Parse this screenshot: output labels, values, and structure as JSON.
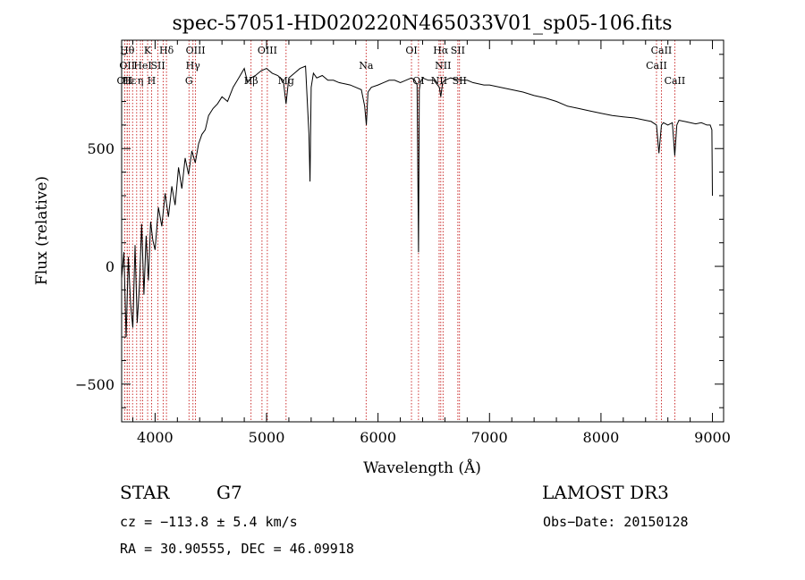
{
  "chart_data": {
    "type": "line",
    "title": "spec-57051-HD020220N465033V01_sp05-106.fits",
    "xlabel": "Wavelength (Å)",
    "ylabel": "Flux (relative)",
    "xlim": [
      3700,
      9100
    ],
    "ylim": [
      -660,
      960
    ],
    "x_ticks": [
      4000,
      5000,
      6000,
      7000,
      8000,
      9000
    ],
    "x_tick_labels": [
      "4000",
      "5000",
      "6000",
      "7000",
      "8000",
      "9000"
    ],
    "y_ticks": [
      -500,
      0,
      500
    ],
    "y_tick_labels": [
      "−500",
      "0",
      "500"
    ],
    "series": [
      {
        "name": "flux",
        "x": [
          3700,
          3720,
          3740,
          3760,
          3780,
          3800,
          3820,
          3840,
          3860,
          3880,
          3900,
          3920,
          3940,
          3960,
          3980,
          4000,
          4030,
          4060,
          4090,
          4120,
          4150,
          4180,
          4210,
          4240,
          4270,
          4300,
          4330,
          4360,
          4390,
          4420,
          4450,
          4480,
          4520,
          4560,
          4600,
          4650,
          4700,
          4750,
          4800,
          4830,
          4860,
          4900,
          4950,
          5000,
          5050,
          5100,
          5150,
          5175,
          5200,
          5250,
          5300,
          5350,
          5380,
          5390,
          5400,
          5420,
          5450,
          5500,
          5550,
          5600,
          5650,
          5700,
          5750,
          5800,
          5850,
          5880,
          5895,
          5910,
          5940,
          6000,
          6050,
          6100,
          6150,
          6200,
          6250,
          6300,
          6330,
          6350,
          6363,
          6370,
          6380,
          6400,
          6450,
          6500,
          6550,
          6563,
          6580,
          6600,
          6650,
          6700,
          6750,
          6800,
          6850,
          6900,
          6950,
          7000,
          7100,
          7200,
          7300,
          7400,
          7500,
          7600,
          7700,
          7800,
          7900,
          8000,
          8100,
          8200,
          8300,
          8400,
          8450,
          8498,
          8520,
          8542,
          8560,
          8600,
          8640,
          8662,
          8680,
          8700,
          8750,
          8800,
          8850,
          8900,
          8950,
          8980,
          8995,
          9000
        ],
        "values": [
          -50,
          60,
          -300,
          40,
          -160,
          -260,
          90,
          -240,
          -80,
          180,
          -120,
          130,
          -60,
          190,
          110,
          70,
          250,
          170,
          310,
          210,
          340,
          260,
          420,
          330,
          460,
          390,
          490,
          440,
          520,
          560,
          580,
          640,
          670,
          690,
          720,
          700,
          760,
          800,
          840,
          780,
          800,
          810,
          830,
          840,
          820,
          810,
          790,
          690,
          800,
          820,
          840,
          850,
          560,
          360,
          760,
          820,
          800,
          810,
          790,
          790,
          780,
          775,
          770,
          760,
          750,
          680,
          600,
          740,
          760,
          770,
          780,
          790,
          790,
          780,
          790,
          800,
          790,
          770,
          60,
          750,
          780,
          800,
          790,
          790,
          760,
          720,
          780,
          790,
          800,
          795,
          790,
          790,
          780,
          775,
          770,
          770,
          760,
          750,
          740,
          725,
          715,
          700,
          680,
          670,
          660,
          650,
          640,
          635,
          630,
          620,
          615,
          600,
          480,
          600,
          610,
          600,
          610,
          470,
          600,
          620,
          615,
          610,
          605,
          610,
          600,
          600,
          580,
          300
        ]
      }
    ],
    "line_markers": [
      {
        "x": 3727,
        "row": 2,
        "label": "OII"
      },
      {
        "x": 3750,
        "row": 0,
        "label": "Hθ"
      },
      {
        "x": 3750,
        "row": 1,
        "label": "OII"
      },
      {
        "x": 3770,
        "row": 2,
        "label": "Hε"
      },
      {
        "x": 3798,
        "row": 0,
        "label": ""
      },
      {
        "x": 3835,
        "row": 1,
        "label": ""
      },
      {
        "x": 3869,
        "row": 2,
        "label": "η"
      },
      {
        "x": 3889,
        "row": 1,
        "label": "HeI"
      },
      {
        "x": 3933,
        "row": 0,
        "label": "K"
      },
      {
        "x": 3968,
        "row": 2,
        "label": "H"
      },
      {
        "x": 4026,
        "row": 1,
        "label": "SII"
      },
      {
        "x": 4072,
        "row": 1,
        "label": ""
      },
      {
        "x": 4102,
        "row": 0,
        "label": "Hδ"
      },
      {
        "x": 4304,
        "row": 2,
        "label": "G"
      },
      {
        "x": 4340,
        "row": 1,
        "label": "Hγ"
      },
      {
        "x": 4363,
        "row": 0,
        "label": "OIII"
      },
      {
        "x": 4861,
        "row": 2,
        "label": "Hβ"
      },
      {
        "x": 4959,
        "row": 2,
        "label": ""
      },
      {
        "x": 5007,
        "row": 0,
        "label": "OIII"
      },
      {
        "x": 5175,
        "row": 2,
        "label": "Mg"
      },
      {
        "x": 5893,
        "row": 1,
        "label": "Na"
      },
      {
        "x": 6300,
        "row": 0,
        "label": "OI"
      },
      {
        "x": 6363,
        "row": 2,
        "label": "OI"
      },
      {
        "x": 6548,
        "row": 2,
        "label": "NII"
      },
      {
        "x": 6563,
        "row": 0,
        "label": "Hα"
      },
      {
        "x": 6583,
        "row": 1,
        "label": "NII"
      },
      {
        "x": 6716,
        "row": 0,
        "label": "SII"
      },
      {
        "x": 6731,
        "row": 2,
        "label": "SII"
      },
      {
        "x": 8498,
        "row": 1,
        "label": "CaII"
      },
      {
        "x": 8542,
        "row": 0,
        "label": "CaII"
      },
      {
        "x": 8662,
        "row": 2,
        "label": "CaII"
      }
    ]
  },
  "info": {
    "object_type": "STAR",
    "spectral_class": "G7",
    "survey": "LAMOST DR3",
    "redshift_line": "cz = −113.8 ± 5.4 km/s",
    "obs_date": "Obs−Date: 20150128",
    "coords": "RA =  30.90555, DEC =  46.09918"
  },
  "colors": {
    "axis": "#000000",
    "flux_line": "#000000",
    "line_marker": "#c00000",
    "background": "#ffffff"
  }
}
